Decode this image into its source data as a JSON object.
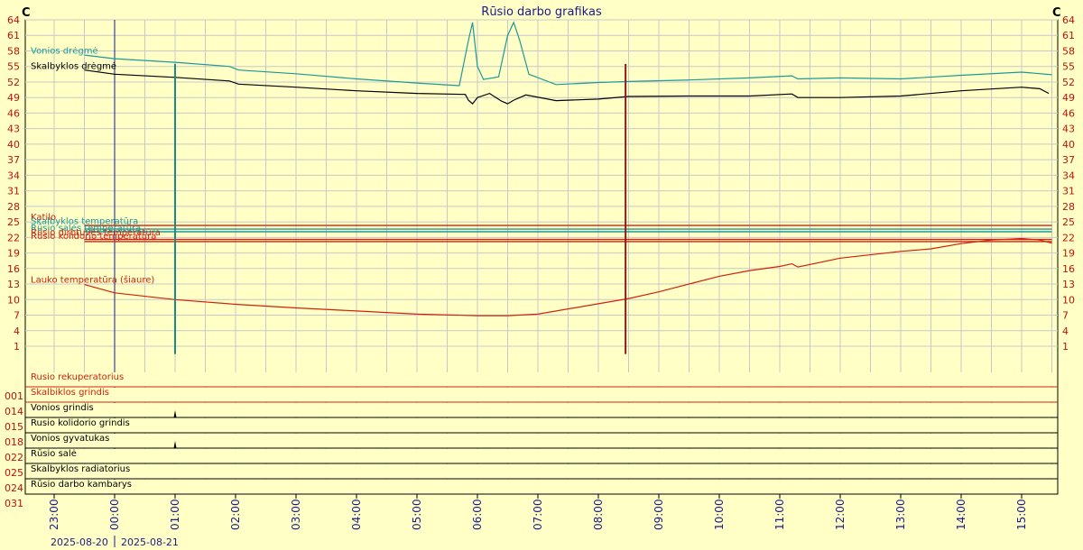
{
  "chart_data": {
    "type": "line",
    "title": "Rūsio darbo grafikas",
    "y_unit_left": "C",
    "y_unit_right": "C",
    "y_ticks": [
      1,
      4,
      7,
      10,
      13,
      16,
      19,
      22,
      25,
      28,
      31,
      34,
      37,
      40,
      43,
      46,
      49,
      52,
      55,
      58,
      61,
      64
    ],
    "ylim": [
      1,
      64
    ],
    "x_ticks": [
      "23:00",
      "00:00",
      "01:00",
      "02:00",
      "03:00",
      "04:00",
      "05:00",
      "06:00",
      "07:00",
      "08:00",
      "09:00",
      "10:00",
      "11:00",
      "12:00",
      "13:00",
      "14:00",
      "15:00"
    ],
    "date_labels": [
      "2025-08-20",
      "2025-08-21"
    ],
    "series": [
      {
        "name": "Vonios drėgmė",
        "color": "#1A9A9A",
        "label_y": 57.5,
        "points": [
          [
            -0.5,
            57.2
          ],
          [
            0,
            56.5
          ],
          [
            1,
            55.8
          ],
          [
            1.9,
            55.0
          ],
          [
            2.05,
            54.3
          ],
          [
            3,
            53.6
          ],
          [
            4,
            52.6
          ],
          [
            5,
            51.8
          ],
          [
            5.7,
            51.3
          ],
          [
            5.85,
            60
          ],
          [
            5.92,
            63.5
          ],
          [
            6.0,
            55
          ],
          [
            6.1,
            52.5
          ],
          [
            6.35,
            53
          ],
          [
            6.5,
            61
          ],
          [
            6.6,
            63.5
          ],
          [
            6.7,
            60
          ],
          [
            6.85,
            53.5
          ],
          [
            7.3,
            51.5
          ],
          [
            8,
            51.9
          ],
          [
            8.5,
            52.1
          ],
          [
            9.5,
            52.4
          ],
          [
            10.5,
            52.8
          ],
          [
            11.2,
            53.2
          ],
          [
            11.3,
            52.6
          ],
          [
            12,
            52.8
          ],
          [
            13,
            52.6
          ],
          [
            14,
            53.3
          ],
          [
            15,
            53.9
          ],
          [
            15.5,
            53.4
          ]
        ]
      },
      {
        "name": "Skalbyklos drėgmė",
        "color": "#000000",
        "label_y": 54.5,
        "points": [
          [
            -0.5,
            54.3
          ],
          [
            0,
            53.5
          ],
          [
            1,
            52.9
          ],
          [
            1.9,
            52.2
          ],
          [
            2.05,
            51.6
          ],
          [
            3,
            51.0
          ],
          [
            4,
            50.3
          ],
          [
            5,
            49.8
          ],
          [
            5.8,
            49.6
          ],
          [
            5.85,
            48.5
          ],
          [
            5.92,
            47.8
          ],
          [
            6.0,
            49
          ],
          [
            6.2,
            49.8
          ],
          [
            6.4,
            48.3
          ],
          [
            6.5,
            47.8
          ],
          [
            6.6,
            48.5
          ],
          [
            6.8,
            49.5
          ],
          [
            7.3,
            48.4
          ],
          [
            8,
            48.7
          ],
          [
            8.5,
            49.2
          ],
          [
            9.5,
            49.3
          ],
          [
            10.5,
            49.3
          ],
          [
            11.2,
            49.7
          ],
          [
            11.3,
            49.0
          ],
          [
            12,
            49.0
          ],
          [
            13,
            49.3
          ],
          [
            14,
            50.3
          ],
          [
            15,
            51.0
          ],
          [
            15.3,
            50.7
          ],
          [
            15.45,
            49.8
          ]
        ]
      },
      {
        "name": "Lauko temperatūra (šiaure)",
        "color": "#D42010",
        "label_y": 13.3,
        "points": [
          [
            -0.5,
            12.9
          ],
          [
            0,
            11.3
          ],
          [
            1,
            10.0
          ],
          [
            2,
            9.1
          ],
          [
            3,
            8.4
          ],
          [
            4,
            7.8
          ],
          [
            5,
            7.2
          ],
          [
            6,
            6.9
          ],
          [
            6.5,
            6.9
          ],
          [
            7,
            7.2
          ],
          [
            8,
            9.2
          ],
          [
            8.5,
            10.2
          ],
          [
            9,
            11.5
          ],
          [
            9.5,
            13
          ],
          [
            10,
            14.5
          ],
          [
            10.5,
            15.6
          ],
          [
            11,
            16.4
          ],
          [
            11.2,
            16.9
          ],
          [
            11.3,
            16.3
          ],
          [
            12,
            18
          ],
          [
            13,
            19.3
          ],
          [
            13.5,
            19.8
          ],
          [
            14,
            20.8
          ],
          [
            14.5,
            21.5
          ],
          [
            15,
            21.8
          ],
          [
            15.3,
            21.5
          ],
          [
            15.5,
            20.9
          ]
        ]
      },
      {
        "name": "Katilo",
        "color": "#D42010",
        "label_y": 25.4,
        "points": [
          [
            -0.5,
            24.3
          ],
          [
            15.5,
            24.3
          ]
        ]
      },
      {
        "name": "Skalbyklos temperatūra",
        "color": "#1A9A9A",
        "label_y": 24.6,
        "points": [
          [
            -0.5,
            23.6
          ],
          [
            15.5,
            23.6
          ]
        ]
      },
      {
        "name": "Rūsio salės temperatūra",
        "color": "#1A9A9A",
        "label_y": 23.3,
        "points": [
          [
            -0.5,
            23.1
          ],
          [
            15.5,
            23.1
          ]
        ]
      },
      {
        "name": "Rūsio dirbtuvės temperatūra",
        "color": "#D42010",
        "label_y": 22.4,
        "points": [
          [
            -0.5,
            21.6
          ],
          [
            15.5,
            21.6
          ]
        ]
      },
      {
        "name": "Rūsio kolidorio temperatūra",
        "color": "#D42010",
        "label_y": 21.7,
        "points": [
          [
            -0.5,
            21.2
          ],
          [
            15.5,
            21.2
          ]
        ]
      }
    ],
    "dips": [
      {
        "x": 1.0,
        "bottom": -0.5,
        "color": "#1A8A8A"
      },
      {
        "x": 8.45,
        "bottom": -0.5,
        "color": "#8A1A1A"
      }
    ],
    "rows": [
      {
        "code": "001",
        "label": "Rusio rekuperatorius",
        "color": "#D42010"
      },
      {
        "code": "014",
        "label": "Skalbiklos grindis",
        "color": "#D42010"
      },
      {
        "code": "015",
        "label": "Vonios grindis",
        "color": "#000000",
        "spikes": [
          1.0
        ]
      },
      {
        "code": "018",
        "label": "Rusio kolidorio grindis",
        "color": "#000000"
      },
      {
        "code": "022",
        "label": "Vonios gyvatukas",
        "color": "#000000",
        "spikes": [
          1.0
        ]
      },
      {
        "code": "025",
        "label": "Rūsio salė",
        "color": "#000000"
      },
      {
        "code": "024",
        "label": "Skalbyklos radiatorius",
        "color": "#000000"
      },
      {
        "code": "031",
        "label": "Rūsio darbo kambarys",
        "color": "#000000"
      }
    ],
    "current_time_marker": 0.0
  }
}
